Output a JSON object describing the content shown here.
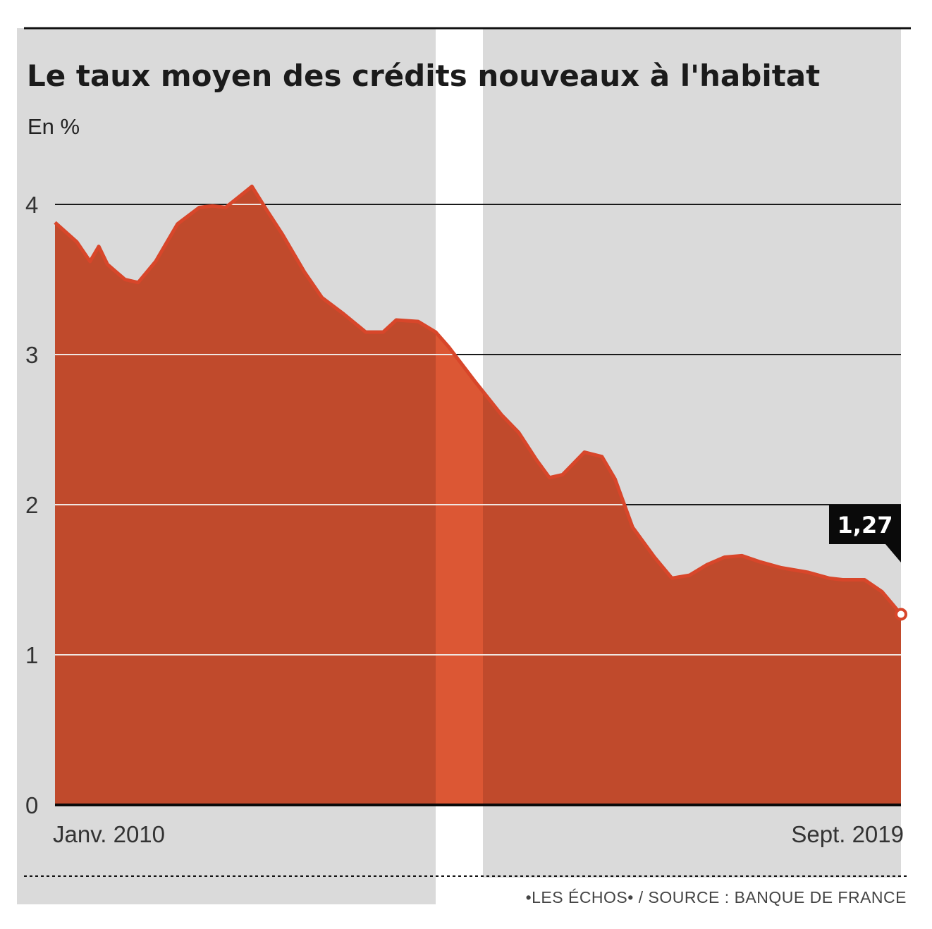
{
  "colors": {
    "area": "#c04a2c",
    "line": "#d8462a",
    "highlight": "#dc5734",
    "background": "#dadada",
    "callout": "#0a0a0a"
  },
  "chart_data": {
    "type": "area",
    "title": "Le taux moyen des crédits nouveaux à l'habitat",
    "subtitle": "En %",
    "ylim": [
      0,
      4.3
    ],
    "yticks": [
      "0",
      "1",
      "2",
      "3",
      "4"
    ],
    "x_start_label": "Janv. 2010",
    "x_end_label": "Sept. 2019",
    "grid": true,
    "series": [
      {
        "values": [
          [
            2010.0,
            3.88
          ],
          [
            2010.25,
            3.75
          ],
          [
            2010.4,
            3.62
          ],
          [
            2010.5,
            3.72
          ],
          [
            2010.6,
            3.6
          ],
          [
            2010.8,
            3.5
          ],
          [
            2010.95,
            3.48
          ],
          [
            2011.15,
            3.62
          ],
          [
            2011.4,
            3.87
          ],
          [
            2011.65,
            3.98
          ],
          [
            2011.8,
            3.99
          ],
          [
            2011.95,
            3.98
          ],
          [
            2012.1,
            4.05
          ],
          [
            2012.25,
            4.12
          ],
          [
            2012.4,
            3.98
          ],
          [
            2012.6,
            3.8
          ],
          [
            2012.85,
            3.55
          ],
          [
            2013.05,
            3.38
          ],
          [
            2013.3,
            3.27
          ],
          [
            2013.55,
            3.15
          ],
          [
            2013.75,
            3.15
          ],
          [
            2013.9,
            3.23
          ],
          [
            2014.15,
            3.22
          ],
          [
            2014.35,
            3.15
          ],
          [
            2014.5,
            3.05
          ],
          [
            2014.8,
            2.82
          ],
          [
            2015.1,
            2.6
          ],
          [
            2015.3,
            2.48
          ],
          [
            2015.5,
            2.3
          ],
          [
            2015.65,
            2.18
          ],
          [
            2015.8,
            2.2
          ],
          [
            2016.05,
            2.35
          ],
          [
            2016.25,
            2.32
          ],
          [
            2016.4,
            2.17
          ],
          [
            2016.6,
            1.85
          ],
          [
            2016.85,
            1.65
          ],
          [
            2017.05,
            1.51
          ],
          [
            2017.25,
            1.53
          ],
          [
            2017.45,
            1.6
          ],
          [
            2017.65,
            1.65
          ],
          [
            2017.85,
            1.66
          ],
          [
            2018.05,
            1.62
          ],
          [
            2018.3,
            1.58
          ],
          [
            2018.6,
            1.55
          ],
          [
            2018.85,
            1.51
          ],
          [
            2019.0,
            1.5
          ],
          [
            2019.25,
            1.5
          ],
          [
            2019.45,
            1.42
          ],
          [
            2019.667,
            1.27
          ]
        ]
      }
    ],
    "annotation": {
      "label": "1,27",
      "value": 1.27,
      "x": 2019.667
    }
  },
  "footer": {
    "source": "•LES ÉCHOS• / SOURCE : BANQUE DE FRANCE"
  }
}
